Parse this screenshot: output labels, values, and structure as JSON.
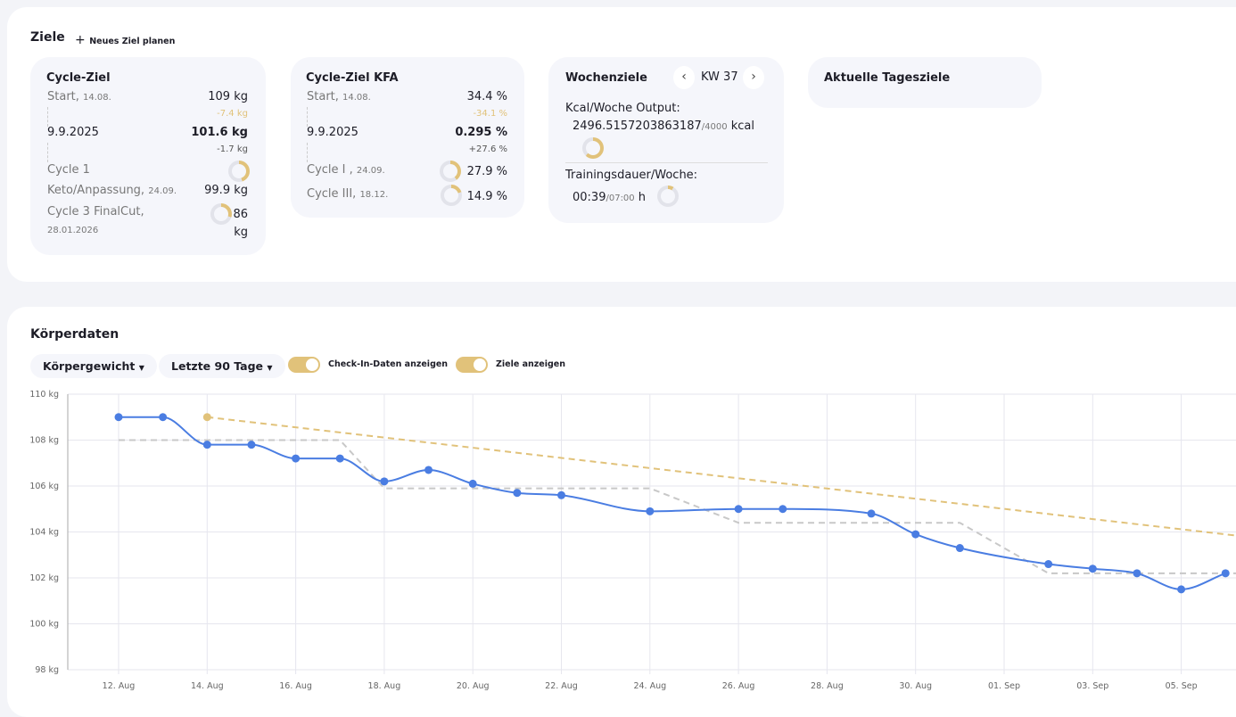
{
  "goals": {
    "title": "Ziele",
    "new_goal": "Neues Ziel planen",
    "cycle": {
      "title": "Cycle-Ziel",
      "start_label": "Start,",
      "start_date": "14.08.",
      "start_value": "109 kg",
      "diff1": "-7.4 kg",
      "current_date": "9.9.2025",
      "current_value": "101.6 kg",
      "diff2": "-1.7 kg",
      "targets": [
        {
          "name": "Cycle 1",
          "name2": "Keto/Anpassung,",
          "date": "24.09.",
          "value": "99.9 kg",
          "progress": 0.45
        },
        {
          "name": "Cycle 3 FinalCut,",
          "date": "28.01.2026",
          "value": "86",
          "unit": "kg",
          "progress": 0.3
        }
      ]
    },
    "kfa": {
      "title": "Cycle-Ziel KFA",
      "start_label": "Start,",
      "start_date": "14.08.",
      "start_value": "34.4 %",
      "diff1": "-34.1 %",
      "current_date": "9.9.2025",
      "current_value": "0.295 %",
      "diff2": "+27.6 %",
      "targets": [
        {
          "name": "Cycle I ,",
          "date": "24.09.",
          "value": "27.9 %",
          "progress": 0.4
        },
        {
          "name": "Cycle III,",
          "date": "18.12.",
          "value": "14.9 %",
          "progress": 0.2
        }
      ]
    },
    "weekly": {
      "title": "Wochenziele",
      "week": "KW 37",
      "kcal_label": "Kcal/Woche Output:",
      "kcal_value": "2496.5157203863187",
      "kcal_target": "/4000",
      "kcal_unit": "kcal",
      "kcal_progress": 0.62,
      "training_label": "Trainingsdauer/Woche:",
      "training_value": "00:39",
      "training_target": "/07:00",
      "training_unit": "h",
      "training_progress": 0.09
    },
    "daily": {
      "title": "Aktuelle Tagesziele"
    }
  },
  "body": {
    "title": "Körperdaten",
    "metric": "Körpergewicht",
    "range": "Letzte 90 Tage",
    "toggle1": "Check-In-Daten anzeigen",
    "toggle2": "Ziele anzeigen"
  },
  "colors": {
    "accent": "#e1c27a",
    "series": "#4a7de2",
    "steps": "#c8c8c8"
  },
  "chart_data": {
    "type": "line",
    "ylim": [
      98,
      110
    ],
    "yticks": [
      "98 kg",
      "100 kg",
      "102 kg",
      "104 kg",
      "106 kg",
      "108 kg",
      "110 kg"
    ],
    "ytick_values": [
      98,
      100,
      102,
      104,
      106,
      108,
      110
    ],
    "xticks": [
      "12. Aug",
      "14. Aug",
      "16. Aug",
      "18. Aug",
      "20. Aug",
      "22. Aug",
      "24. Aug",
      "26. Aug",
      "28. Aug",
      "30. Aug",
      "01. Sep",
      "03. Sep",
      "05. Sep"
    ],
    "xtick_dates": [
      "2025-08-12",
      "2025-08-14",
      "2025-08-16",
      "2025-08-18",
      "2025-08-20",
      "2025-08-22",
      "2025-08-24",
      "2025-08-26",
      "2025-08-28",
      "2025-08-30",
      "2025-09-01",
      "2025-09-03",
      "2025-09-05"
    ],
    "grid": true,
    "weight": [
      [
        "2025-08-12",
        109
      ],
      [
        "2025-08-13",
        109
      ],
      [
        "2025-08-14",
        107.8
      ],
      [
        "2025-08-15",
        107.8
      ],
      [
        "2025-08-16",
        107.2
      ],
      [
        "2025-08-17",
        107.2
      ],
      [
        "2025-08-18",
        106.2
      ],
      [
        "2025-08-19",
        106.7
      ],
      [
        "2025-08-20",
        106.1
      ],
      [
        "2025-08-21",
        105.7
      ],
      [
        "2025-08-22",
        105.6
      ],
      [
        "2025-08-24",
        104.9
      ],
      [
        "2025-08-26",
        105.0
      ],
      [
        "2025-08-27",
        105.0
      ],
      [
        "2025-08-29",
        104.8
      ],
      [
        "2025-08-30",
        103.9
      ],
      [
        "2025-08-31",
        103.3
      ],
      [
        "2025-09-02",
        102.6
      ],
      [
        "2025-09-03",
        102.4
      ],
      [
        "2025-09-04",
        102.2
      ],
      [
        "2025-09-05",
        101.5
      ],
      [
        "2025-09-06",
        102.2
      ]
    ],
    "checkin_goals": [
      [
        "2025-08-12",
        108
      ],
      [
        "2025-08-17",
        108
      ],
      [
        "2025-08-18",
        105.9
      ],
      [
        "2025-08-24",
        105.9
      ],
      [
        "2025-08-26",
        104.4
      ],
      [
        "2025-08-31",
        104.4
      ],
      [
        "2025-09-02",
        102.2
      ],
      [
        "2025-09-07",
        102.2
      ]
    ],
    "goal_line": [
      [
        "2025-08-14",
        109
      ],
      [
        "2025-09-24",
        99.9
      ]
    ]
  }
}
